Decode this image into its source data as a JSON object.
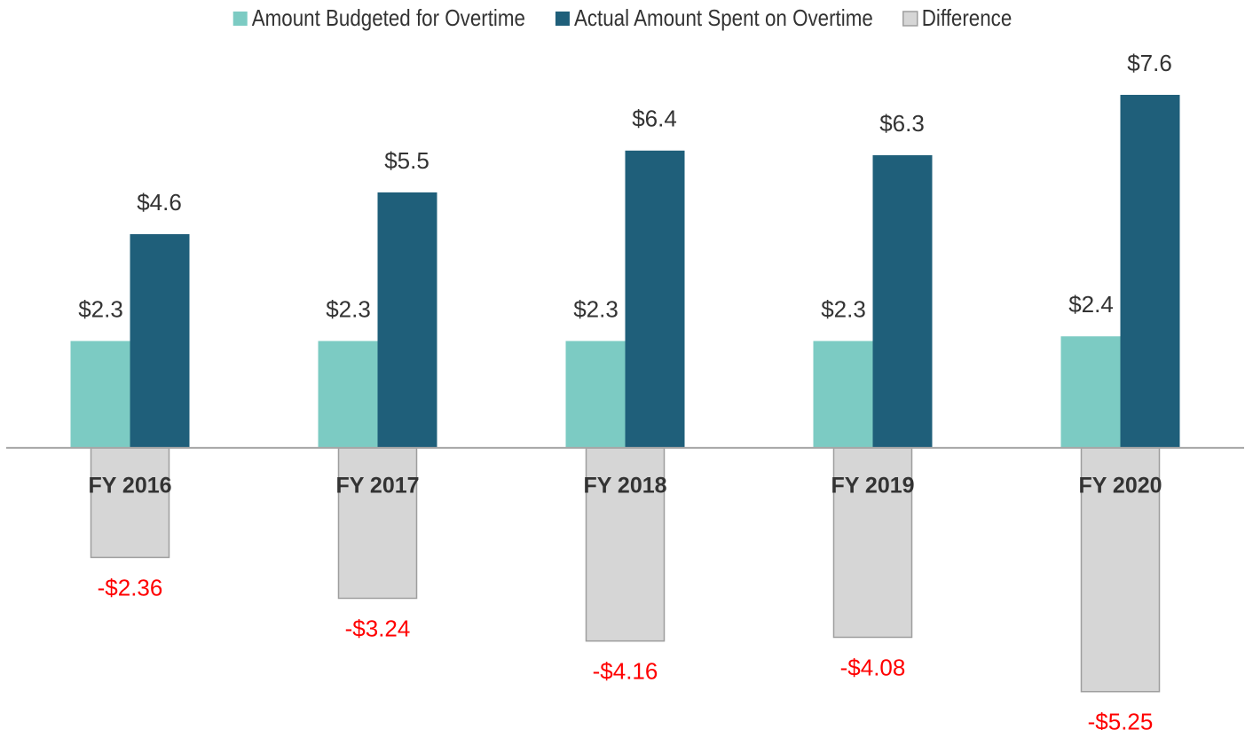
{
  "chart_data": {
    "type": "bar",
    "categories": [
      "FY 2016",
      "FY 2017",
      "FY 2018",
      "FY 2019",
      "FY 2020"
    ],
    "series": [
      {
        "name": "Amount Budgeted for Overtime",
        "color": "#7ccbc3",
        "values": [
          2.3,
          2.3,
          2.3,
          2.3,
          2.4
        ],
        "value_labels": [
          "$2.3",
          "$2.3",
          "$2.3",
          "$2.3",
          "$2.4"
        ]
      },
      {
        "name": "Actual Amount Spent on Overtime",
        "color": "#1f5f7a",
        "values": [
          4.6,
          5.5,
          6.4,
          6.3,
          7.6
        ],
        "value_labels": [
          "$4.6",
          "$5.5",
          "$6.4",
          "$6.3",
          "$7.6"
        ]
      },
      {
        "name": "Difference",
        "color": "#d6d6d6",
        "values": [
          -2.36,
          -3.24,
          -4.16,
          -4.08,
          -5.25
        ],
        "value_labels": [
          "-$2.36",
          "-$3.24",
          "-$4.16",
          "-$4.08",
          "-$5.25"
        ]
      }
    ],
    "ylim": [
      -6,
      8
    ],
    "legend": "top"
  }
}
